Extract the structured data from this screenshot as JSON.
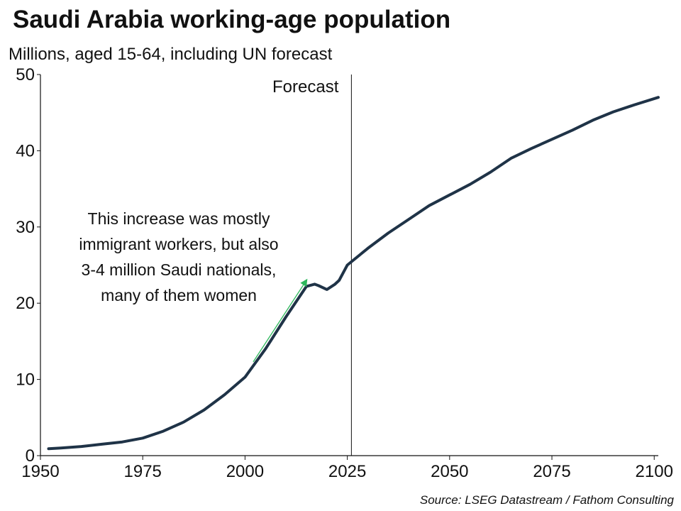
{
  "header": {
    "title": "Saudi Arabia working-age population",
    "subtitle": "Millions, aged 15-64, including UN forecast"
  },
  "footer": {
    "source": "Source: LSEG Datastream / Fathom Consulting"
  },
  "colors": {
    "line": "#1f3347",
    "arrow": "#2eb85c",
    "axis": "#111111"
  },
  "chart_data": {
    "type": "line",
    "title": "Saudi Arabia working-age population",
    "subtitle": "Millions, aged 15-64, including UN forecast",
    "xlabel": "",
    "ylabel": "",
    "xlim": [
      1950,
      2101
    ],
    "ylim": [
      0,
      50
    ],
    "x_ticks": [
      1950,
      1975,
      2000,
      2025,
      2050,
      2075,
      2100
    ],
    "y_ticks": [
      0,
      10,
      20,
      30,
      40,
      50
    ],
    "grid": false,
    "legend": "none",
    "series": [
      {
        "x": [
          1952,
          1955,
          1960,
          1965,
          1970,
          1975,
          1980,
          1985,
          1990,
          1995,
          2000,
          2005,
          2010,
          2015,
          2017,
          2018,
          2020,
          2022,
          2023,
          2025,
          2030,
          2035,
          2040,
          2045,
          2050,
          2055,
          2060,
          2065,
          2070,
          2075,
          2080,
          2085,
          2090,
          2095,
          2101
        ],
        "values": [
          0.9,
          1.0,
          1.2,
          1.5,
          1.8,
          2.3,
          3.2,
          4.4,
          6.0,
          8.0,
          10.3,
          14.0,
          18.2,
          22.2,
          22.5,
          22.3,
          21.8,
          22.5,
          23.0,
          25.0,
          27.2,
          29.2,
          31.0,
          32.8,
          34.2,
          35.6,
          37.2,
          39.0,
          40.3,
          41.5,
          42.7,
          44.0,
          45.1,
          46.0,
          47.0
        ]
      }
    ],
    "forecast_marker": {
      "x": 2026,
      "label": "Forecast"
    },
    "annotations": [
      {
        "lines": [
          "This increase was mostly",
          "immigrant workers, but also",
          "3-4 million Saudi nationals,",
          "many of them women"
        ],
        "arrow_from": [
          2002,
          12.3
        ],
        "arrow_to": [
          2015,
          23.0
        ]
      }
    ]
  }
}
